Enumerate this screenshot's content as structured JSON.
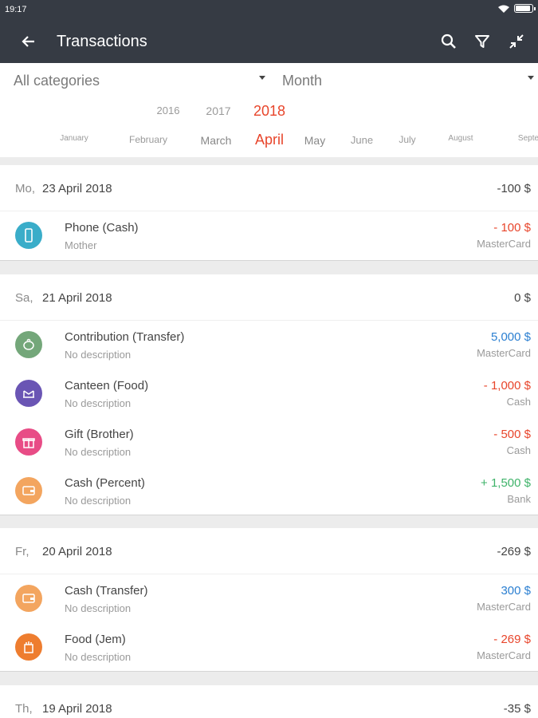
{
  "status_bar": {
    "time": "19:17"
  },
  "app_bar": {
    "title": "Transactions"
  },
  "filters": {
    "category": "All categories",
    "period": "Month"
  },
  "years": [
    "2016",
    "2017",
    "2018"
  ],
  "selected_year": "2018",
  "months": [
    "January",
    "February",
    "March",
    "April",
    "May",
    "June",
    "July",
    "August",
    "Septe"
  ],
  "selected_month": "April",
  "colors": {
    "negative": "#e8452b",
    "transfer": "#2b7fd1",
    "positive": "#3fb36a",
    "appbar": "#363b44"
  },
  "days": [
    {
      "dow": "Mo,",
      "date": "23 April 2018",
      "total": "-100 $",
      "transactions": [
        {
          "title": "Phone (Cash)",
          "sub": "Mother",
          "amount": "- 100 $",
          "amount_type": "negative",
          "account": "MasterCard",
          "icon": "phone-icon",
          "icon_color": "#3aadc9"
        }
      ]
    },
    {
      "dow": "Sa,",
      "date": "21 April 2018",
      "total": "0 $",
      "transactions": [
        {
          "title": "Contribution (Transfer)",
          "sub": "No description",
          "amount": "5,000 $",
          "amount_type": "transfer",
          "account": "MasterCard",
          "icon": "piggy-bank-icon",
          "icon_color": "#74a77a"
        },
        {
          "title": "Canteen (Food)",
          "sub": "No description",
          "amount": "- 1,000 $",
          "amount_type": "negative",
          "account": "Cash",
          "icon": "canteen-icon",
          "icon_color": "#6a55b4"
        },
        {
          "title": "Gift (Brother)",
          "sub": "No description",
          "amount": "- 500 $",
          "amount_type": "negative",
          "account": "Cash",
          "icon": "gift-icon",
          "icon_color": "#e84c86"
        },
        {
          "title": "Cash (Percent)",
          "sub": "No description",
          "amount": "+ 1,500 $",
          "amount_type": "positive",
          "account": "Bank",
          "icon": "wallet-icon",
          "icon_color": "#f3a55f"
        }
      ]
    },
    {
      "dow": "Fr,",
      "date": "20 April 2018",
      "total": "-269 $",
      "transactions": [
        {
          "title": "Cash (Transfer)",
          "sub": "No description",
          "amount": "300 $",
          "amount_type": "transfer",
          "account": "MasterCard",
          "icon": "wallet-icon",
          "icon_color": "#f3a55f"
        },
        {
          "title": "Food (Jem)",
          "sub": "No description",
          "amount": "- 269 $",
          "amount_type": "negative",
          "account": "MasterCard",
          "icon": "food-icon",
          "icon_color": "#ee7d2f"
        }
      ]
    },
    {
      "dow": "Th,",
      "date": "19 April 2018",
      "total": "-35 $",
      "transactions": []
    }
  ]
}
